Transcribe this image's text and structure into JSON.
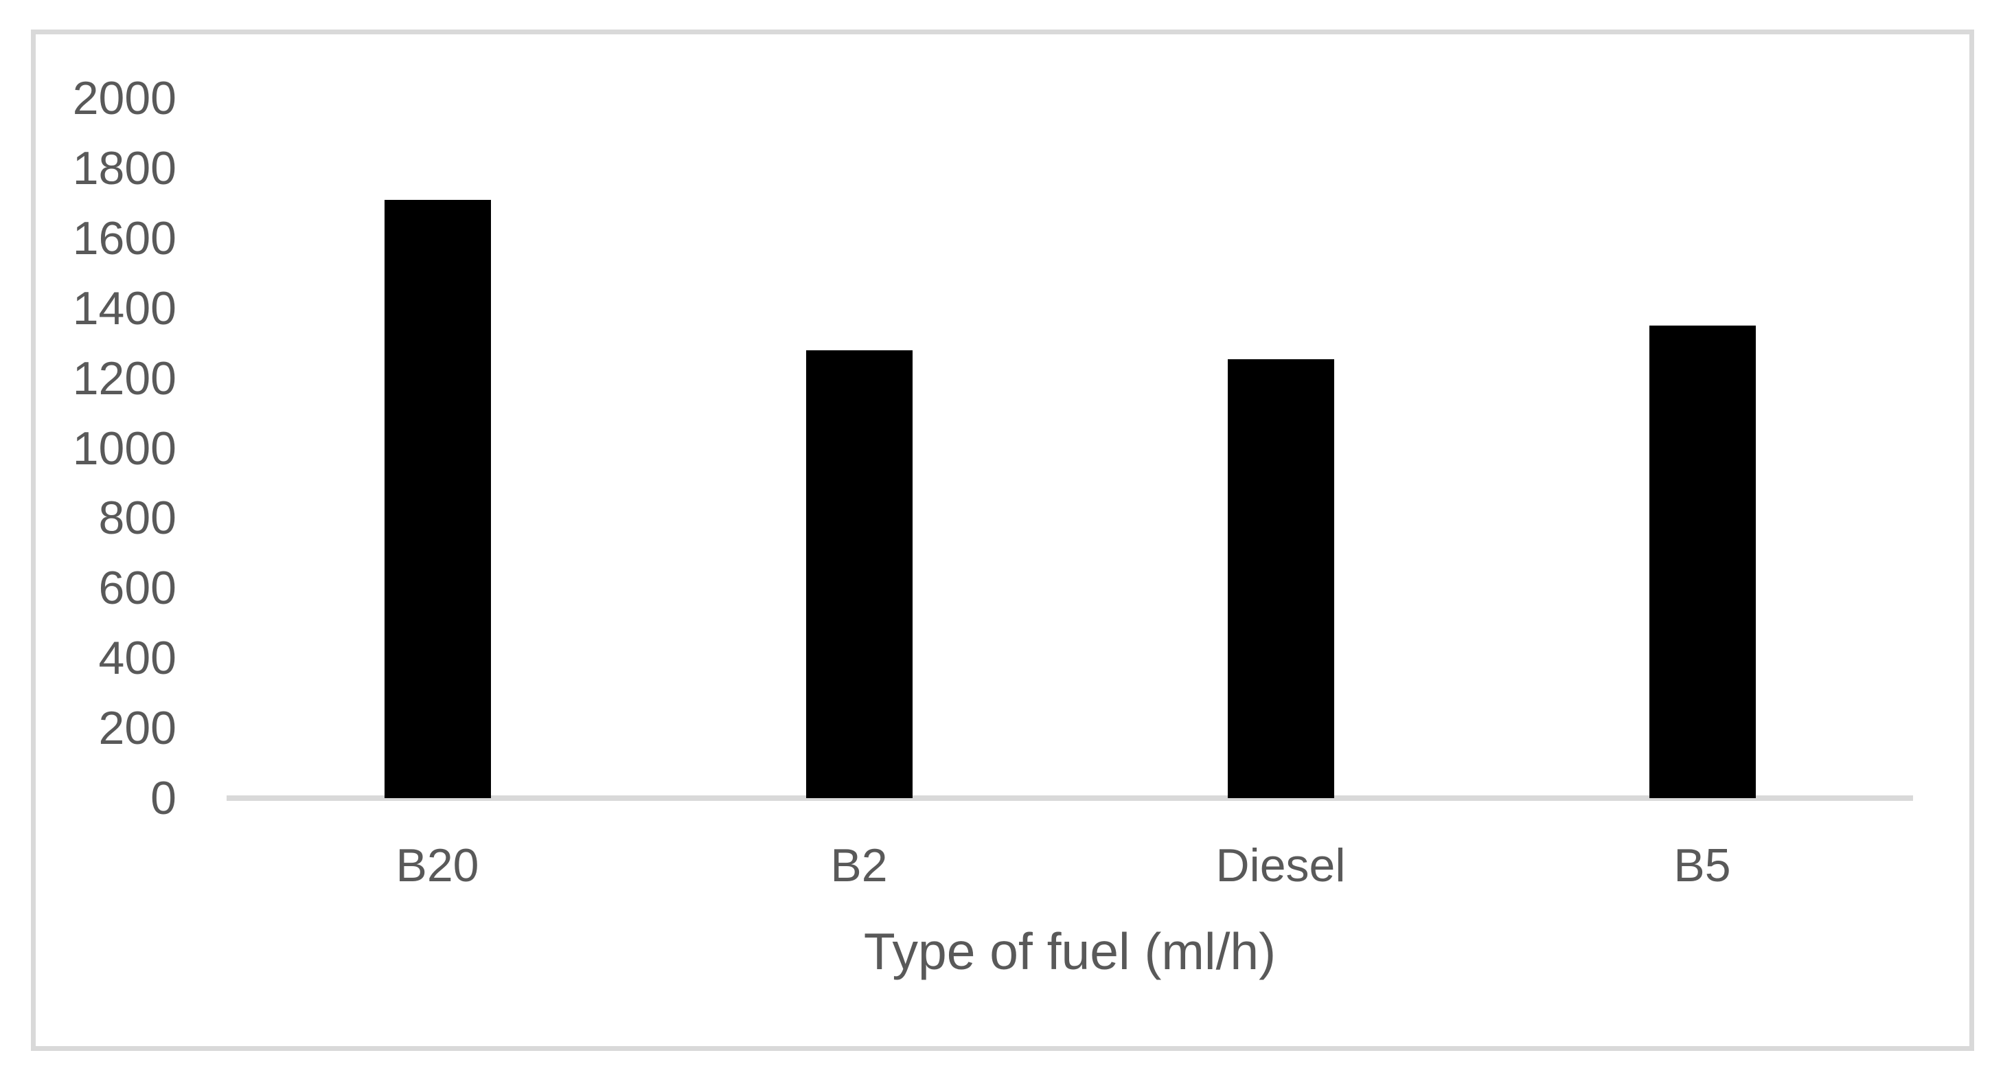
{
  "chart_data": {
    "type": "bar",
    "title": "",
    "xlabel": "Type of fuel (ml/h)",
    "ylabel": "",
    "categories": [
      "B20",
      "B2",
      "Diesel",
      "B5"
    ],
    "values": [
      1710,
      1280,
      1255,
      1350
    ],
    "ylim": [
      0,
      2000
    ],
    "ytick_step": 200,
    "yticks": [
      0,
      200,
      400,
      600,
      800,
      1000,
      1200,
      1400,
      1600,
      1800,
      2000
    ],
    "grid": false,
    "legend": false,
    "colors": {
      "bar": "#000000",
      "tick_label": "#595959",
      "axis_title": "#595959",
      "axis_line": "#d9d9d9",
      "frame_border": "#d9d9d9",
      "background": "#ffffff"
    }
  }
}
